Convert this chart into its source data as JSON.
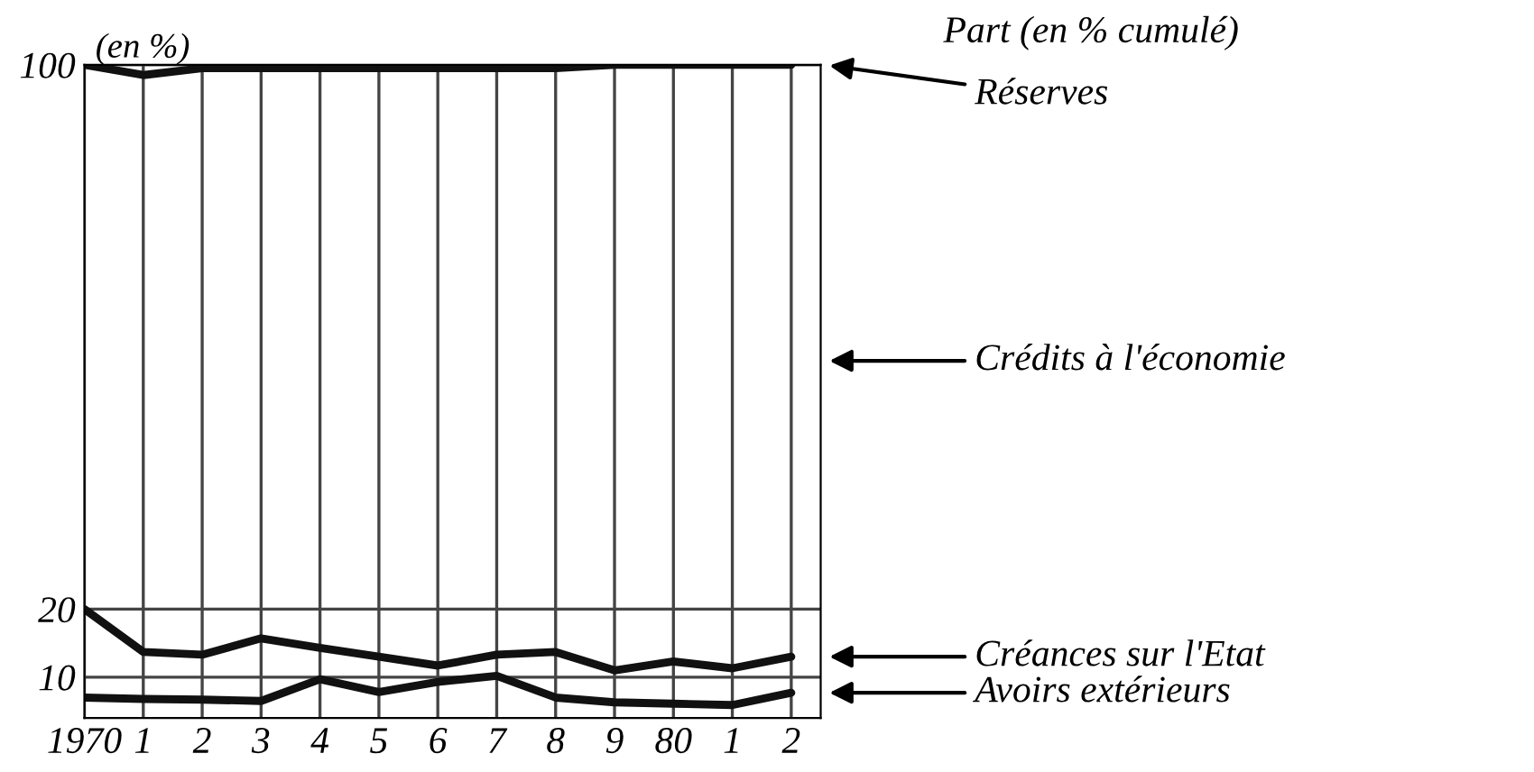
{
  "chart_data": {
    "type": "line",
    "title": "Part (en % cumulé)",
    "ylabel": "(en %)",
    "categories": [
      "1970",
      "1",
      "2",
      "3",
      "4",
      "5",
      "6",
      "7",
      "8",
      "9",
      "80",
      "1",
      "2"
    ],
    "series": [
      {
        "name": "Réserves",
        "color": "#111111",
        "values": [
          100,
          98.5,
          99.5,
          99.5,
          99.5,
          99.5,
          99.5,
          99.5,
          99.5,
          100,
          100,
          100,
          100
        ]
      },
      {
        "name": "Créances sur l'Etat",
        "color": "#111111",
        "values": [
          20,
          13.7,
          13.3,
          15.7,
          14.3,
          13,
          11.7,
          13.3,
          13.7,
          11,
          12.3,
          11.3,
          13
        ]
      },
      {
        "name": "Avoirs extérieurs",
        "color": "#111111",
        "values": [
          7,
          6.8,
          6.7,
          6.5,
          9.7,
          7.8,
          9.3,
          10.2,
          7,
          6.3,
          6.1,
          5.9,
          7.7
        ]
      }
    ],
    "annotations": [
      "Crédits à l'économie"
    ],
    "ylim": [
      4,
      100
    ],
    "yticks": [
      10,
      20,
      100
    ],
    "grid": true,
    "legend": false,
    "marker": "none",
    "line_style": "solid"
  }
}
